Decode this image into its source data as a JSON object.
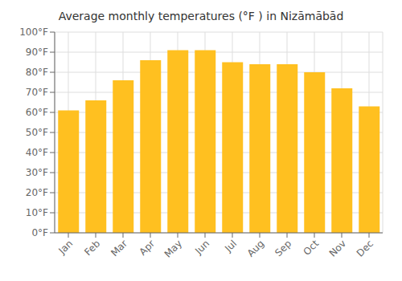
{
  "chart_data": {
    "type": "bar",
    "title": "Average monthly temperatures (°F ) in Nizāmābād",
    "categories": [
      "Jan",
      "Feb",
      "Mar",
      "Apr",
      "May",
      "Jun",
      "Jul",
      "Aug",
      "Sep",
      "Oct",
      "Nov",
      "Dec"
    ],
    "values": [
      61,
      66,
      76,
      86,
      91,
      91,
      85,
      84,
      84,
      80,
      72,
      63
    ],
    "color": "#FFC020",
    "ylim": [
      0,
      100
    ],
    "yticks": [
      {
        "value": 0,
        "label": "0°F"
      },
      {
        "value": 10,
        "label": "10°F"
      },
      {
        "value": 20,
        "label": "20°F"
      },
      {
        "value": 30,
        "label": "30°F"
      },
      {
        "value": 40,
        "label": "40°F"
      },
      {
        "value": 50,
        "label": "50°F"
      },
      {
        "value": 60,
        "label": "60°F"
      },
      {
        "value": 70,
        "label": "70°F"
      },
      {
        "value": 80,
        "label": "80°F"
      },
      {
        "value": 90,
        "label": "90°F"
      },
      {
        "value": 100,
        "label": "100°F"
      }
    ],
    "grid": true
  }
}
